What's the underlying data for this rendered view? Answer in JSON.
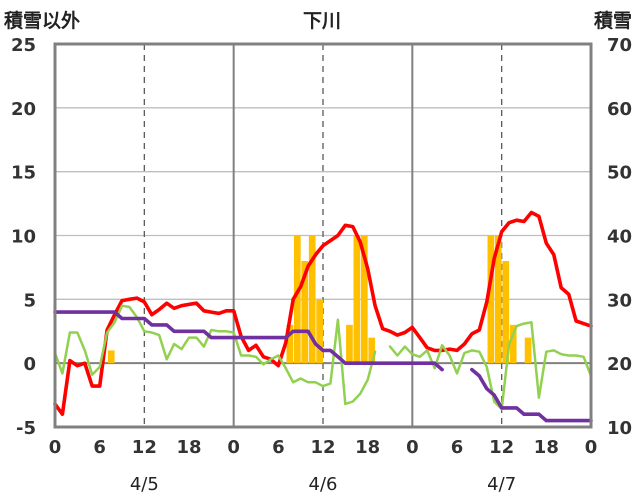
{
  "chart_data": {
    "type": "line",
    "title": "下川",
    "left_axis_label": "積雪以外",
    "right_axis_label": "積雪",
    "left_ylim": [
      -5,
      25
    ],
    "left_yticks": [
      -5,
      0,
      5,
      10,
      15,
      20,
      25
    ],
    "right_ylim": [
      10,
      70
    ],
    "right_yticks": [
      10,
      20,
      30,
      40,
      50,
      60,
      70
    ],
    "x_range_hours": [
      0,
      72
    ],
    "x_tick_labels": [
      "0",
      "6",
      "12",
      "18",
      "0",
      "6",
      "12",
      "18",
      "0",
      "6",
      "12",
      "18",
      "0"
    ],
    "day_labels": [
      "4/5",
      "4/6",
      "4/7"
    ],
    "grid": "vertical dashed lines at 12h, solid lines at day boundaries",
    "colors": {
      "temperature": "#ff0000",
      "wind": "#92d050",
      "precipitation": "#ffc000",
      "snow_depth": "#7030a0"
    },
    "series": [
      {
        "key": "temperature",
        "axis": "left",
        "x": [
          0,
          1,
          2,
          3,
          4,
          5,
          6,
          7,
          8,
          9,
          10,
          11,
          12,
          13,
          14,
          15,
          16,
          17,
          18,
          19,
          20,
          21,
          22,
          23,
          24,
          25,
          26,
          27,
          28,
          29,
          30,
          31,
          32,
          33,
          34,
          35,
          36,
          37,
          38,
          39,
          40,
          41,
          42,
          43,
          44,
          45,
          46,
          47,
          48,
          49,
          50,
          51,
          52,
          53,
          54,
          55,
          56,
          57,
          58,
          59,
          60,
          61,
          62,
          63,
          64,
          65,
          66,
          67,
          68,
          69,
          70,
          71,
          72
        ],
        "values": [
          -3.2,
          -4.0,
          0.2,
          -0.2,
          0.0,
          -1.8,
          -1.8,
          2.6,
          3.8,
          4.9,
          5.0,
          5.1,
          4.8,
          3.8,
          4.2,
          4.7,
          4.3,
          4.5,
          4.6,
          4.7,
          4.1,
          4.0,
          3.9,
          4.1,
          4.1,
          2.1,
          1.0,
          1.4,
          0.5,
          0.3,
          -0.2,
          1.6,
          5.0,
          6.0,
          7.6,
          8.5,
          9.2,
          9.6,
          10.0,
          10.8,
          10.7,
          9.5,
          7.4,
          4.5,
          2.7,
          2.5,
          2.2,
          2.4,
          2.8,
          2.0,
          1.2,
          1.0,
          1.0,
          1.1,
          1.0,
          1.5,
          2.3,
          2.6,
          4.8,
          8.2,
          10.3,
          11.0,
          11.2,
          11.1,
          11.8,
          11.5,
          9.4,
          8.5,
          5.9,
          5.4,
          3.3,
          3.1,
          2.9
        ]
      },
      {
        "key": "wind",
        "axis": "left",
        "segments": [
          {
            "x": [
              0,
              1,
              2,
              3,
              4,
              5,
              6,
              7,
              8,
              9,
              10,
              11,
              12,
              13,
              14,
              15,
              16,
              17,
              18,
              19,
              20,
              21,
              22,
              23,
              24,
              25,
              26,
              27,
              28,
              29,
              30,
              31,
              32,
              33,
              34,
              35,
              36,
              37,
              38,
              39,
              40,
              41,
              42,
              43
            ],
            "values": [
              0.8,
              -0.8,
              2.4,
              2.4,
              1.0,
              -0.9,
              -0.3,
              2.4,
              3.2,
              4.5,
              4.4,
              3.6,
              2.5,
              2.4,
              2.2,
              0.3,
              1.5,
              1.1,
              2.0,
              2.0,
              1.3,
              2.6,
              2.5,
              2.5,
              2.4,
              0.6,
              0.6,
              0.5,
              -0.1,
              0.3,
              0.6,
              -0.4,
              -1.5,
              -1.2,
              -1.5,
              -1.5,
              -1.8,
              -1.6,
              3.4,
              -3.2,
              -3.0,
              -2.4,
              -1.3,
              0.9
            ]
          },
          {
            "x": [
              45,
              46,
              47,
              48,
              49,
              50,
              51,
              52,
              53,
              54,
              55,
              56,
              57,
              58,
              59,
              60,
              61,
              62,
              63,
              64,
              65,
              66,
              67,
              68,
              69,
              70,
              71,
              72
            ],
            "values": [
              1.3,
              0.6,
              1.3,
              0.7,
              0.5,
              1.0,
              -0.4,
              1.4,
              0.6,
              -0.8,
              0.8,
              1.0,
              0.9,
              -0.3,
              -3.0,
              -3.6,
              1.5,
              2.9,
              3.1,
              3.2,
              -2.7,
              0.9,
              1.0,
              0.7,
              0.6,
              0.6,
              0.5,
              -1.0
            ]
          }
        ]
      },
      {
        "key": "precipitation",
        "axis": "left",
        "type": "bar",
        "x": [
          7,
          8,
          31,
          32,
          33,
          34,
          35,
          36,
          37,
          38,
          39,
          40,
          41,
          42,
          43,
          44,
          45,
          46,
          47,
          48,
          49,
          50,
          51,
          52,
          53,
          54,
          55,
          56,
          57,
          58,
          59,
          60,
          61,
          62,
          63,
          64,
          65,
          66
        ],
        "values": [
          0,
          1.0,
          0,
          3.0,
          10.0,
          8.0,
          10.0,
          5.0,
          0,
          0,
          0,
          3.0,
          10.0,
          10.0,
          2.0,
          0,
          0,
          0,
          0,
          0,
          0,
          0,
          0,
          0,
          0,
          0,
          0,
          0,
          0,
          0,
          10.0,
          10.0,
          8.0,
          3.0,
          0,
          2.0,
          0,
          0
        ]
      },
      {
        "key": "snow_depth",
        "axis": "right",
        "segments": [
          {
            "x": [
              0,
              1,
              2,
              3,
              4,
              5,
              6,
              7,
              8,
              9,
              10,
              11,
              12,
              13,
              14,
              15,
              16,
              17,
              18,
              19,
              20,
              21,
              22,
              23,
              24,
              25,
              26,
              27,
              28,
              29,
              30,
              31,
              32,
              33,
              34,
              35,
              36,
              37,
              38,
              39,
              40,
              41,
              42,
              43,
              44,
              45,
              46,
              47,
              48,
              49,
              50,
              51,
              52
            ],
            "values": [
              28,
              28,
              28,
              28,
              28,
              28,
              28,
              28,
              28,
              27,
              27,
              27,
              27,
              26,
              26,
              26,
              25,
              25,
              25,
              25,
              25,
              24,
              24,
              24,
              24,
              24,
              24,
              24,
              24,
              24,
              24,
              24,
              25,
              25,
              25,
              23,
              22,
              22,
              21,
              20,
              20,
              20,
              20,
              20,
              20,
              20,
              20,
              20,
              20,
              20,
              20,
              20,
              19
            ]
          },
          {
            "x": [
              56,
              57,
              58,
              59,
              60,
              61,
              62,
              63,
              64,
              65,
              66,
              67,
              68,
              69,
              70,
              71,
              72
            ],
            "values": [
              19,
              18,
              16,
              15,
              13,
              13,
              13,
              12,
              12,
              12,
              11,
              11,
              11,
              11,
              11,
              11,
              11
            ]
          }
        ]
      }
    ]
  }
}
